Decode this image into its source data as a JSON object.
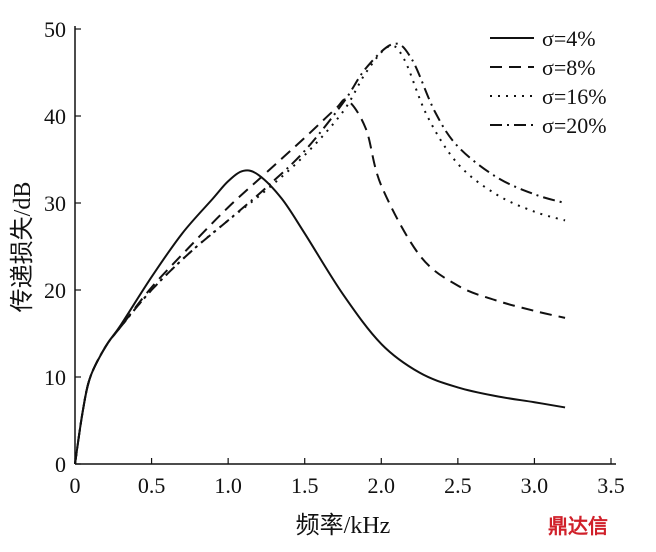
{
  "chart_data": {
    "type": "line",
    "title": "",
    "xlabel": "频率/kHz",
    "ylabel": "传递损失/dB",
    "xlim": [
      0,
      3.5
    ],
    "ylim": [
      0,
      50
    ],
    "xticks": [
      "0",
      "0.5",
      "1.0",
      "1.5",
      "2.0",
      "2.5",
      "3.0",
      "3.5"
    ],
    "yticks": [
      "0",
      "10",
      "20",
      "30",
      "40",
      "50"
    ],
    "grid": false,
    "legend_position": "top-right",
    "series": [
      {
        "name": "σ=4%",
        "style": "solid",
        "x": [
          0,
          0.05,
          0.1,
          0.2,
          0.3,
          0.5,
          0.7,
          0.9,
          1.0,
          1.1,
          1.2,
          1.35,
          1.5,
          1.75,
          2.0,
          2.25,
          2.5,
          2.75,
          3.0,
          3.2
        ],
        "y": [
          0,
          6,
          10,
          13.5,
          16,
          21.5,
          26.5,
          30.5,
          32.5,
          33.7,
          33.2,
          30.5,
          26.5,
          19.5,
          13.8,
          10.5,
          8.8,
          7.8,
          7.1,
          6.5
        ]
      },
      {
        "name": "σ=8%",
        "style": "dashed",
        "x": [
          0,
          0.05,
          0.1,
          0.2,
          0.3,
          0.5,
          0.75,
          1.0,
          1.25,
          1.5,
          1.7,
          1.78,
          1.9,
          2.0,
          2.25,
          2.5,
          2.75,
          3.0,
          3.2
        ],
        "y": [
          0,
          6,
          10,
          13.5,
          15.8,
          20.3,
          25,
          29.5,
          33.5,
          37.5,
          40.8,
          41.8,
          38.5,
          32,
          24,
          20.5,
          18.8,
          17.6,
          16.8
        ]
      },
      {
        "name": "σ=16%",
        "style": "dotted",
        "x": [
          0,
          0.05,
          0.1,
          0.2,
          0.3,
          0.5,
          0.75,
          1.0,
          1.25,
          1.5,
          1.75,
          1.9,
          2.05,
          2.15,
          2.3,
          2.5,
          2.75,
          3.0,
          3.2
        ],
        "y": [
          0,
          6,
          10,
          13.5,
          15.8,
          20,
          24.3,
          28,
          31.5,
          35.5,
          40.5,
          45,
          48,
          46.5,
          40,
          34.5,
          31,
          29,
          28
        ]
      },
      {
        "name": "σ=20%",
        "style": "dashdot",
        "x": [
          0,
          0.05,
          0.1,
          0.2,
          0.3,
          0.5,
          0.75,
          1.0,
          1.25,
          1.5,
          1.75,
          1.9,
          2.08,
          2.2,
          2.35,
          2.5,
          2.75,
          3.0,
          3.2
        ],
        "y": [
          0,
          6,
          10,
          13.5,
          15.8,
          20,
          24.3,
          28,
          31.8,
          36,
          41.5,
          45.5,
          48.3,
          46.5,
          40.5,
          36.5,
          33,
          31,
          30
        ]
      }
    ]
  },
  "watermark": "鼎达信"
}
